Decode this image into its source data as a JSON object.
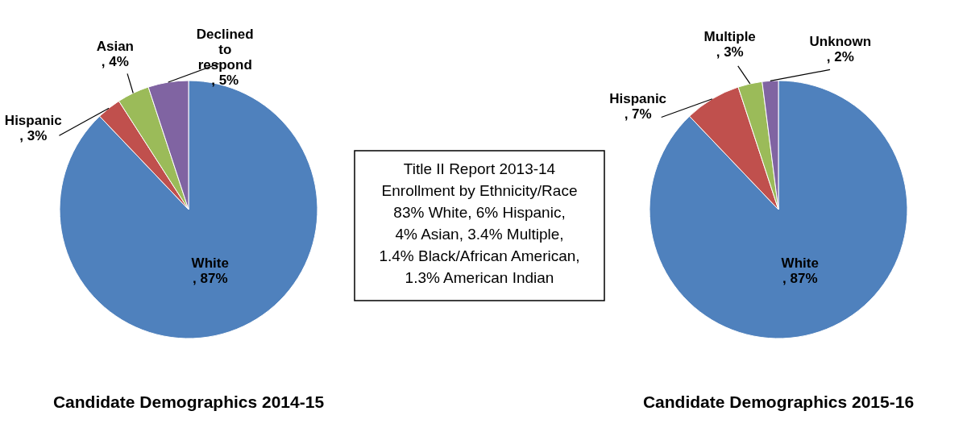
{
  "chart_data": [
    {
      "type": "pie",
      "title": "Candidate Demographics 2014-15",
      "categories": [
        "White",
        "Hispanic",
        "Asian",
        "Declined to respond"
      ],
      "values": [
        87,
        3,
        4,
        5
      ],
      "colors": [
        "#4f81bd",
        "#c0504d",
        "#9bbb59",
        "#8064a2"
      ],
      "value_labels": [
        ", 87%",
        ", 3%",
        ", 4%",
        ", 5%"
      ],
      "legend": false,
      "annotations": [
        "Title II Report 2013-14\nEnrollment by Ethnicity/Race\n83% White, 6% Hispanic,\n4% Asian, 3.4% Multiple,\n1.4% Black/African American,\n1.3% American Indian"
      ]
    },
    {
      "type": "pie",
      "title": "Candidate Demographics 2015-16",
      "categories": [
        "White",
        "Hispanic",
        "Multiple",
        "Unknown"
      ],
      "values": [
        87,
        7,
        3,
        2
      ],
      "colors": [
        "#4f81bd",
        "#c0504d",
        "#9bbb59",
        "#8064a2"
      ],
      "value_labels": [
        ", 87%",
        ", 7%",
        ", 3%",
        ", 2%"
      ],
      "legend": false
    }
  ]
}
